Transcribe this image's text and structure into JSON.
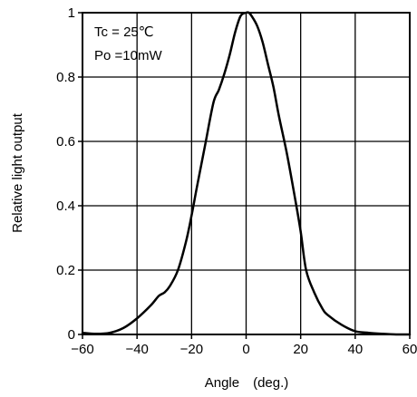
{
  "chart_data": {
    "type": "line",
    "title": "",
    "xlabel": "Angle　(deg.)",
    "ylabel": "Relative  light  output",
    "xlim": [
      -60,
      60
    ],
    "ylim": [
      0,
      1
    ],
    "x_ticks": [
      "−60",
      "−40",
      "−20",
      "0",
      "20",
      "40",
      "60"
    ],
    "y_ticks": [
      "0",
      "0.2",
      "0.4",
      "0.6",
      "0.8",
      "1"
    ],
    "x_tick_values": [
      -60,
      -40,
      -20,
      0,
      20,
      40,
      60
    ],
    "y_tick_values": [
      0,
      0.2,
      0.4,
      0.6,
      0.8,
      1
    ],
    "grid": true,
    "annotations": [
      "Tc = 25℃",
      "Po =10mW"
    ],
    "series": [
      {
        "x": [
          -60,
          -55,
          -50,
          -45,
          -40,
          -35,
          -32,
          -30,
          -28,
          -25,
          -22,
          -20,
          -18,
          -15,
          -12,
          -10,
          -8,
          -6,
          -4,
          -2,
          0,
          1,
          2,
          4,
          6,
          8,
          10,
          12,
          15,
          18,
          20,
          22,
          25,
          28,
          30,
          35,
          40,
          45,
          50,
          55,
          60
        ],
        "y": [
          0.005,
          0.002,
          0.005,
          0.02,
          0.05,
          0.09,
          0.12,
          0.13,
          0.15,
          0.2,
          0.29,
          0.37,
          0.46,
          0.59,
          0.72,
          0.76,
          0.81,
          0.87,
          0.94,
          0.99,
          1.0,
          1.0,
          0.99,
          0.96,
          0.91,
          0.84,
          0.77,
          0.68,
          0.56,
          0.42,
          0.32,
          0.2,
          0.13,
          0.08,
          0.06,
          0.03,
          0.01,
          0.005,
          0.002,
          0.0,
          0.0
        ]
      }
    ]
  }
}
